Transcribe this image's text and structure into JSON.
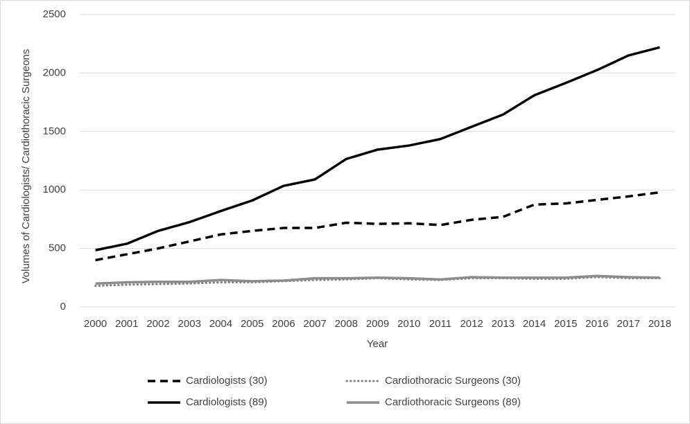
{
  "chart_data": {
    "type": "line",
    "x_label": "Year",
    "y_label": "Volumes of Cardiologists/ Cardiothoracic Surgeons",
    "categories": [
      "2000",
      "2001",
      "2002",
      "2003",
      "2004",
      "2005",
      "2006",
      "2007",
      "2008",
      "2009",
      "2010",
      "2011",
      "2012",
      "2013",
      "2014",
      "2015",
      "2016",
      "2017",
      "2018"
    ],
    "series": [
      {
        "name": "Cardiologists (30)",
        "color": "#000000",
        "style": "dashed",
        "values": [
          400,
          450,
          500,
          560,
          620,
          650,
          675,
          675,
          720,
          710,
          715,
          700,
          745,
          770,
          875,
          885,
          915,
          945,
          980
        ]
      },
      {
        "name": "Cardiothoracic Surgeons (30)",
        "color": "#7f7f7f",
        "style": "dotted",
        "values": [
          180,
          190,
          195,
          200,
          210,
          210,
          220,
          230,
          235,
          245,
          235,
          230,
          245,
          245,
          240,
          240,
          255,
          245,
          245
        ]
      },
      {
        "name": "Cardiologists (89)",
        "color": "#000000",
        "style": "solid",
        "values": [
          485,
          540,
          650,
          725,
          820,
          910,
          1035,
          1090,
          1265,
          1345,
          1380,
          1435,
          1540,
          1645,
          1810,
          1915,
          2025,
          2150,
          2220
        ]
      },
      {
        "name": "Cardiothoracic Surgeons (89)",
        "color": "#8c8c8c",
        "style": "solid",
        "values": [
          200,
          210,
          215,
          215,
          230,
          220,
          225,
          245,
          245,
          250,
          245,
          235,
          255,
          250,
          250,
          250,
          265,
          255,
          250
        ]
      }
    ],
    "ylim": [
      0,
      2500
    ],
    "yticks": [
      0,
      500,
      1000,
      1500,
      2000,
      2500
    ],
    "grid": true,
    "legend": "bottom"
  }
}
